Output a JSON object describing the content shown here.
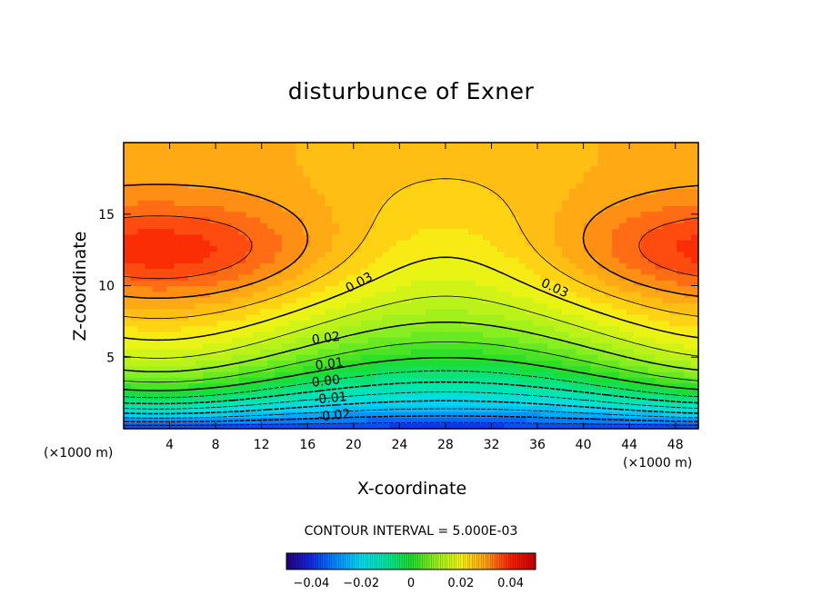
{
  "chart_data": {
    "type": "heatmap",
    "title": "disturbunce of Exner",
    "xlabel": "X-coordinate",
    "ylabel": "Z-coordinate",
    "x_unit": "(×1000 m)",
    "y_unit": "(×1000 m)",
    "xlim": [
      0,
      50
    ],
    "ylim": [
      0,
      20
    ],
    "x_ticks": [
      4,
      8,
      12,
      16,
      20,
      24,
      28,
      32,
      36,
      40,
      44,
      48
    ],
    "y_ticks": [
      5,
      10,
      15
    ],
    "contour_interval_text": "CONTOUR INTERVAL = 5.000E-03",
    "contour_labels": [
      {
        "text": "0.03",
        "x": 20.5,
        "z": 10.2,
        "rot": -28
      },
      {
        "text": "0.03",
        "x": 37.5,
        "z": 9.8,
        "rot": 25
      },
      {
        "text": "0.02",
        "x": 17.6,
        "z": 6.3,
        "rot": -8
      },
      {
        "text": "0.01",
        "x": 17.9,
        "z": 4.5,
        "rot": -7
      },
      {
        "text": "0.00",
        "x": 17.6,
        "z": 3.3,
        "rot": -6
      },
      {
        "text": "-0.01",
        "x": 18.0,
        "z": 2.1,
        "rot": -6
      },
      {
        "text": "-0.02",
        "x": 18.3,
        "z": 0.9,
        "rot": -6
      }
    ],
    "colorbar": {
      "range": [
        -0.05,
        0.05
      ],
      "tick_values": [
        -0.04,
        -0.02,
        0,
        0.02,
        0.04
      ],
      "tick_labels": [
        "−0.04",
        "−0.02",
        "0",
        "0.02",
        "0.04"
      ]
    },
    "field_description": {
      "max_value": 0.039,
      "max_locations": [
        [
          11.5,
          12.3
        ],
        [
          47,
          12.5
        ]
      ],
      "min_value": -0.04,
      "min_location": [
        28,
        0
      ]
    }
  },
  "text": {
    "title": "disturbunce of Exner",
    "xlabel": "X-coordinate",
    "ylabel": "Z-coordinate",
    "unit_left": "(×1000 m)",
    "unit_right": "(×1000 m)",
    "interval": "CONTOUR INTERVAL = 5.000E-03"
  },
  "colors": {
    "background": "#ffffff",
    "axis": "#000000",
    "contour": "#000000"
  }
}
